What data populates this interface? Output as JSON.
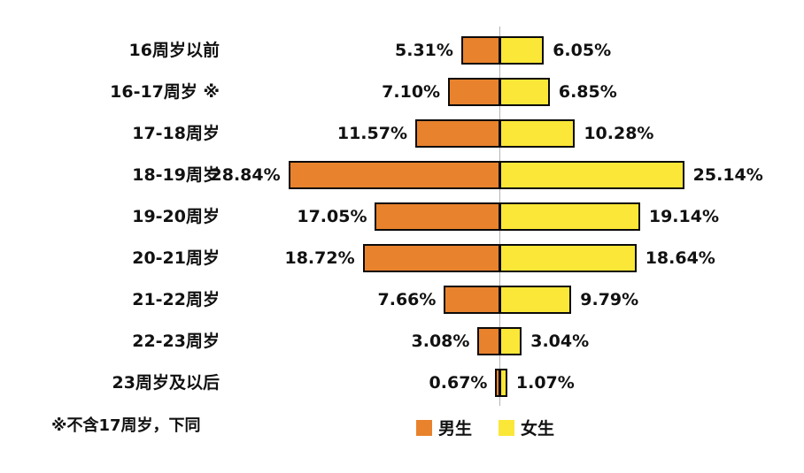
{
  "chart_data": {
    "type": "bar",
    "subtype": "population-pyramid",
    "orientation": "horizontal",
    "title": "",
    "categories": [
      "16周岁以前",
      "16-17周岁 ※",
      "17-18周岁",
      "18-19周岁",
      "19-20周岁",
      "20-21周岁",
      "21-22周岁",
      "22-23周岁",
      "23周岁及以后"
    ],
    "series": [
      {
        "name": "男生",
        "side": "left",
        "color": "#E8822D",
        "values": [
          5.31,
          7.1,
          11.57,
          28.84,
          17.05,
          18.72,
          7.66,
          3.08,
          0.67
        ],
        "labels": [
          "5.31%",
          "7.10%",
          "11.57%",
          "28.84%",
          "17.05%",
          "18.72%",
          "7.66%",
          "3.08%",
          "0.67%"
        ]
      },
      {
        "name": "女生",
        "side": "right",
        "color": "#FAE737",
        "values": [
          6.05,
          6.85,
          10.28,
          25.14,
          19.14,
          18.64,
          9.79,
          3.04,
          1.07
        ],
        "labels": [
          "6.05%",
          "6.85%",
          "10.28%",
          "25.14%",
          "19.14%",
          "18.64%",
          "9.79%",
          "3.04%",
          "1.07%"
        ]
      }
    ],
    "footnote": "※不含17周岁，下同",
    "legend_position": "bottom",
    "axis": {
      "center_value": 0,
      "max_percent": 29,
      "gridlines": false
    },
    "bar_border_color": "#0a0a0a",
    "center_axis_color": "#b3b3b3",
    "background_color": "#ffffff"
  }
}
